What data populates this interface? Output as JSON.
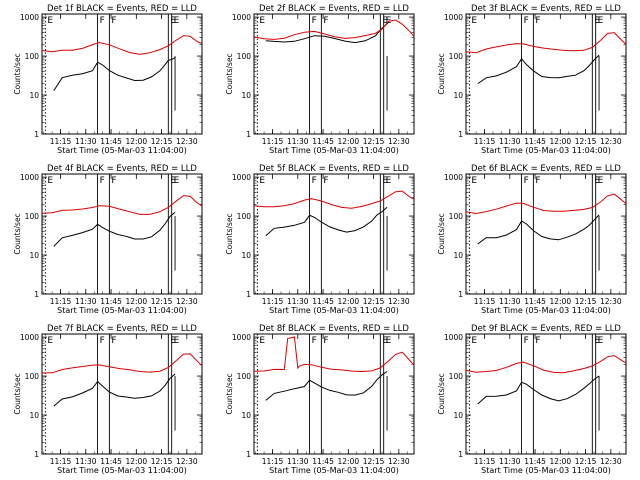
{
  "figure": {
    "xlabel_template": "Start Time (05-Mar-03 11:04:00)",
    "ylabel": "Counts/sec",
    "xticks": [
      "11:15",
      "11:30",
      "11:45",
      "12:00",
      "12:15",
      "12:30"
    ],
    "yticks": [
      "1",
      "10",
      "100",
      "1000"
    ],
    "colors": {
      "events": "#000000",
      "lld": "#dd0000",
      "axes": "#000000"
    }
  },
  "chart_data": [
    {
      "type": "line",
      "title": "Det 1f BLACK = Events, RED = LLD",
      "xlabel": "Start Time (05-Mar-03 11:04:00)",
      "ylabel": "Counts/sec",
      "y_scale": "log",
      "ylim": [
        1,
        1200
      ],
      "xlim_minutes": [
        0,
        95
      ],
      "markers": [
        {
          "label": "E",
          "minute": 2
        },
        {
          "label": "F",
          "minute": 33
        },
        {
          "label": "F",
          "minute": 40
        },
        {
          "label": "E",
          "minute": 75
        },
        {
          "label": "E",
          "minute": 77
        }
      ],
      "series": [
        {
          "key": "events",
          "x": [
            7,
            12,
            18,
            24,
            30,
            33,
            36,
            40,
            45,
            50,
            55,
            60,
            65,
            70,
            73,
            75,
            77,
            79
          ],
          "y": [
            13,
            26,
            30,
            35,
            45,
            75,
            60,
            40,
            30,
            27,
            25,
            26,
            30,
            40,
            55,
            75,
            85,
            100
          ]
        },
        {
          "key": "lld",
          "x": [
            0,
            6,
            12,
            18,
            24,
            30,
            34,
            40,
            46,
            52,
            58,
            64,
            70,
            75,
            80,
            84,
            88,
            92,
            95
          ],
          "y": [
            130,
            120,
            140,
            150,
            170,
            200,
            210,
            180,
            150,
            130,
            120,
            125,
            140,
            170,
            250,
            350,
            350,
            250,
            200
          ]
        }
      ]
    },
    {
      "type": "line",
      "title": "Det 2f BLACK = Events, RED = LLD",
      "xlabel": "Start Time (05-Mar-03 11:04:00)",
      "ylabel": "Counts/sec",
      "y_scale": "log",
      "ylim": [
        1,
        1200
      ],
      "xlim_minutes": [
        0,
        95
      ],
      "markers": [
        {
          "label": "E",
          "minute": 2
        },
        {
          "label": "F",
          "minute": 33
        },
        {
          "label": "F",
          "minute": 40
        },
        {
          "label": "E",
          "minute": 75
        },
        {
          "label": "E",
          "minute": 77
        }
      ],
      "series": [
        {
          "key": "events",
          "x": [
            7,
            12,
            18,
            24,
            30,
            36,
            42,
            48,
            54,
            60,
            66,
            72,
            76,
            80
          ],
          "y": [
            230,
            230,
            240,
            260,
            290,
            320,
            300,
            270,
            250,
            240,
            260,
            320,
            480,
            700
          ]
        },
        {
          "key": "lld",
          "x": [
            0,
            6,
            12,
            18,
            24,
            30,
            36,
            42,
            48,
            54,
            60,
            66,
            72,
            76,
            80,
            84,
            88,
            92,
            95
          ],
          "y": [
            300,
            290,
            290,
            300,
            340,
            380,
            410,
            380,
            340,
            300,
            290,
            310,
            360,
            500,
            850,
            900,
            650,
            420,
            300
          ]
        }
      ]
    },
    {
      "type": "line",
      "title": "Det 3f BLACK = Events, RED = LLD",
      "xlabel": "Start Time (05-Mar-03 11:04:00)",
      "ylabel": "Counts/sec",
      "y_scale": "log",
      "ylim": [
        1,
        1200
      ],
      "xlim_minutes": [
        0,
        95
      ],
      "markers": [
        {
          "label": "E",
          "minute": 2
        },
        {
          "label": "F",
          "minute": 33
        },
        {
          "label": "F",
          "minute": 40
        },
        {
          "label": "E",
          "minute": 75
        },
        {
          "label": "E",
          "minute": 77
        }
      ],
      "series": [
        {
          "key": "events",
          "x": [
            7,
            12,
            18,
            24,
            30,
            33,
            36,
            40,
            45,
            50,
            55,
            60,
            65,
            70,
            73,
            76,
            79
          ],
          "y": [
            20,
            30,
            33,
            38,
            50,
            80,
            60,
            45,
            32,
            28,
            26,
            28,
            32,
            45,
            60,
            80,
            100
          ]
        },
        {
          "key": "lld",
          "x": [
            0,
            6,
            12,
            18,
            24,
            30,
            34,
            40,
            46,
            52,
            58,
            64,
            70,
            75,
            80,
            84,
            88,
            92,
            95
          ],
          "y": [
            140,
            130,
            150,
            160,
            180,
            210,
            220,
            190,
            160,
            140,
            130,
            135,
            150,
            180,
            260,
            360,
            370,
            260,
            210
          ]
        }
      ]
    },
    {
      "type": "line",
      "title": "Det 4f BLACK = Events, RED = LLD",
      "xlabel": "Start Time (05-Mar-03 11:04:00)",
      "ylabel": "Counts/sec",
      "y_scale": "log",
      "ylim": [
        1,
        1200
      ],
      "xlim_minutes": [
        0,
        95
      ],
      "markers": [
        {
          "label": "E",
          "minute": 2
        },
        {
          "label": "F",
          "minute": 33
        },
        {
          "label": "F",
          "minute": 40
        },
        {
          "label": "E",
          "minute": 75
        },
        {
          "label": "E",
          "minute": 77
        }
      ],
      "series": [
        {
          "key": "events",
          "x": [
            7,
            12,
            18,
            24,
            30,
            33,
            36,
            40,
            45,
            50,
            55,
            60,
            65,
            70,
            73,
            76,
            79
          ],
          "y": [
            18,
            28,
            30,
            35,
            45,
            65,
            55,
            42,
            32,
            28,
            25,
            27,
            32,
            45,
            60,
            90,
            120
          ]
        },
        {
          "key": "lld",
          "x": [
            0,
            6,
            12,
            18,
            24,
            30,
            34,
            40,
            46,
            52,
            58,
            64,
            70,
            75,
            80,
            84,
            88,
            92,
            95
          ],
          "y": [
            120,
            115,
            130,
            140,
            160,
            180,
            190,
            170,
            140,
            125,
            115,
            120,
            135,
            160,
            230,
            320,
            330,
            240,
            190
          ]
        }
      ]
    },
    {
      "type": "line",
      "title": "Det 5f BLACK = Events, RED = LLD",
      "xlabel": "Start Time (05-Mar-03 11:04:00)",
      "ylabel": "Counts/sec",
      "y_scale": "log",
      "ylim": [
        1,
        1200
      ],
      "xlim_minutes": [
        0,
        95
      ],
      "markers": [
        {
          "label": "E",
          "minute": 2
        },
        {
          "label": "F",
          "minute": 33
        },
        {
          "label": "F",
          "minute": 40
        },
        {
          "label": "E",
          "minute": 75
        },
        {
          "label": "E",
          "minute": 77
        }
      ],
      "series": [
        {
          "key": "events",
          "x": [
            7,
            12,
            18,
            24,
            30,
            33,
            36,
            40,
            45,
            50,
            55,
            60,
            65,
            70,
            73,
            76,
            79
          ],
          "y": [
            30,
            45,
            50,
            60,
            75,
            110,
            90,
            65,
            50,
            45,
            42,
            45,
            52,
            70,
            100,
            130,
            180
          ]
        },
        {
          "key": "lld",
          "x": [
            0,
            6,
            12,
            18,
            24,
            30,
            34,
            40,
            46,
            52,
            58,
            64,
            70,
            75,
            80,
            84,
            88,
            92,
            95
          ],
          "y": [
            170,
            165,
            180,
            200,
            220,
            250,
            260,
            230,
            200,
            180,
            170,
            175,
            195,
            230,
            330,
            450,
            470,
            320,
            250
          ]
        }
      ]
    },
    {
      "type": "line",
      "title": "Det 6f BLACK = Events, RED = LLD",
      "xlabel": "Start Time (05-Mar-03 11:04:00)",
      "ylabel": "Counts/sec",
      "y_scale": "log",
      "ylim": [
        1,
        1200
      ],
      "xlim_minutes": [
        0,
        95
      ],
      "markers": [
        {
          "label": "E",
          "minute": 2
        },
        {
          "label": "F",
          "minute": 33
        },
        {
          "label": "F",
          "minute": 40
        },
        {
          "label": "E",
          "minute": 75
        },
        {
          "label": "E",
          "minute": 77
        }
      ],
      "series": [
        {
          "key": "events",
          "x": [
            7,
            12,
            18,
            24,
            30,
            33,
            36,
            40,
            45,
            50,
            55,
            60,
            65,
            70,
            73,
            76,
            79
          ],
          "y": [
            18,
            28,
            30,
            35,
            45,
            70,
            58,
            42,
            32,
            28,
            25,
            27,
            32,
            45,
            60,
            85,
            110
          ]
        },
        {
          "key": "lld",
          "x": [
            0,
            6,
            12,
            18,
            24,
            30,
            34,
            40,
            46,
            52,
            58,
            64,
            70,
            75,
            80,
            84,
            88,
            92,
            95
          ],
          "y": [
            130,
            125,
            140,
            150,
            170,
            200,
            210,
            180,
            150,
            135,
            125,
            130,
            145,
            175,
            250,
            340,
            350,
            250,
            200
          ]
        }
      ]
    },
    {
      "type": "line",
      "title": "Det 7f BLACK = Events, RED = LLD",
      "xlabel": "Start Time (05-Mar-03 11:04:00)",
      "ylabel": "Counts/sec",
      "y_scale": "log",
      "ylim": [
        1,
        1200
      ],
      "xlim_minutes": [
        0,
        95
      ],
      "markers": [
        {
          "label": "E",
          "minute": 2
        },
        {
          "label": "F",
          "minute": 33
        },
        {
          "label": "F",
          "minute": 40
        },
        {
          "label": "E",
          "minute": 75
        },
        {
          "label": "E",
          "minute": 77
        }
      ],
      "series": [
        {
          "key": "events",
          "x": [
            7,
            12,
            18,
            24,
            30,
            33,
            36,
            40,
            45,
            50,
            55,
            60,
            65,
            70,
            73,
            76,
            79
          ],
          "y": [
            18,
            28,
            30,
            35,
            45,
            70,
            58,
            42,
            32,
            28,
            25,
            27,
            32,
            45,
            60,
            85,
            105
          ]
        },
        {
          "key": "lld",
          "x": [
            0,
            6,
            12,
            18,
            24,
            30,
            34,
            40,
            46,
            52,
            58,
            64,
            70,
            75,
            80,
            84,
            88,
            92,
            95
          ],
          "y": [
            130,
            125,
            140,
            150,
            170,
            200,
            210,
            180,
            150,
            135,
            125,
            130,
            145,
            175,
            250,
            340,
            350,
            250,
            200
          ]
        }
      ]
    },
    {
      "type": "line",
      "title": "Det 8f BLACK = Events, RED = LLD",
      "xlabel": "Start Time (05-Mar-03 11:04:00)",
      "ylabel": "Counts/sec",
      "y_scale": "log",
      "ylim": [
        1,
        1200
      ],
      "xlim_minutes": [
        0,
        95
      ],
      "markers": [
        {
          "label": "E",
          "minute": 2
        },
        {
          "label": "F",
          "minute": 33
        },
        {
          "label": "F",
          "minute": 40
        },
        {
          "label": "E",
          "minute": 75
        },
        {
          "label": "E",
          "minute": 77
        }
      ],
      "series": [
        {
          "key": "events",
          "x": [
            7,
            12,
            18,
            24,
            30,
            33,
            36,
            40,
            45,
            50,
            55,
            60,
            65,
            70,
            73,
            76,
            79
          ],
          "y": [
            25,
            35,
            38,
            45,
            55,
            85,
            70,
            52,
            40,
            36,
            33,
            35,
            40,
            55,
            75,
            100,
            130
          ]
        },
        {
          "key": "lld",
          "x": [
            0,
            6,
            12,
            18,
            20,
            21,
            24,
            26,
            27,
            30,
            34,
            40,
            46,
            52,
            58,
            64,
            70,
            75,
            80,
            84,
            88,
            92,
            95
          ],
          "y": [
            130,
            125,
            140,
            150,
            1000,
            1000,
            1000,
            150,
            170,
            200,
            210,
            180,
            150,
            135,
            125,
            130,
            145,
            175,
            250,
            340,
            380,
            260,
            200
          ]
        }
      ]
    },
    {
      "type": "line",
      "title": "Det 9f BLACK = Events, RED = LLD",
      "xlabel": "Start Time (05-Mar-03 11:04:00)",
      "ylabel": "Counts/sec",
      "y_scale": "log",
      "ylim": [
        1,
        1200
      ],
      "xlim_minutes": [
        0,
        95
      ],
      "markers": [
        {
          "label": "E",
          "minute": 2
        },
        {
          "label": "F",
          "minute": 33
        },
        {
          "label": "F",
          "minute": 40
        },
        {
          "label": "E",
          "minute": 75
        },
        {
          "label": "E",
          "minute": 77
        }
      ],
      "series": [
        {
          "key": "events",
          "x": [
            7,
            12,
            18,
            24,
            30,
            33,
            36,
            40,
            45,
            50,
            55,
            60,
            65,
            70,
            73,
            76,
            79
          ],
          "y": [
            18,
            28,
            30,
            35,
            45,
            70,
            58,
            42,
            32,
            28,
            25,
            27,
            32,
            45,
            60,
            85,
            110
          ]
        },
        {
          "key": "lld",
          "x": [
            0,
            6,
            12,
            18,
            24,
            30,
            34,
            40,
            46,
            52,
            58,
            64,
            70,
            75,
            80,
            84,
            88,
            92,
            95
          ],
          "y": [
            130,
            125,
            140,
            150,
            170,
            200,
            210,
            180,
            150,
            135,
            125,
            130,
            145,
            175,
            250,
            340,
            350,
            250,
            200
          ]
        }
      ]
    }
  ]
}
